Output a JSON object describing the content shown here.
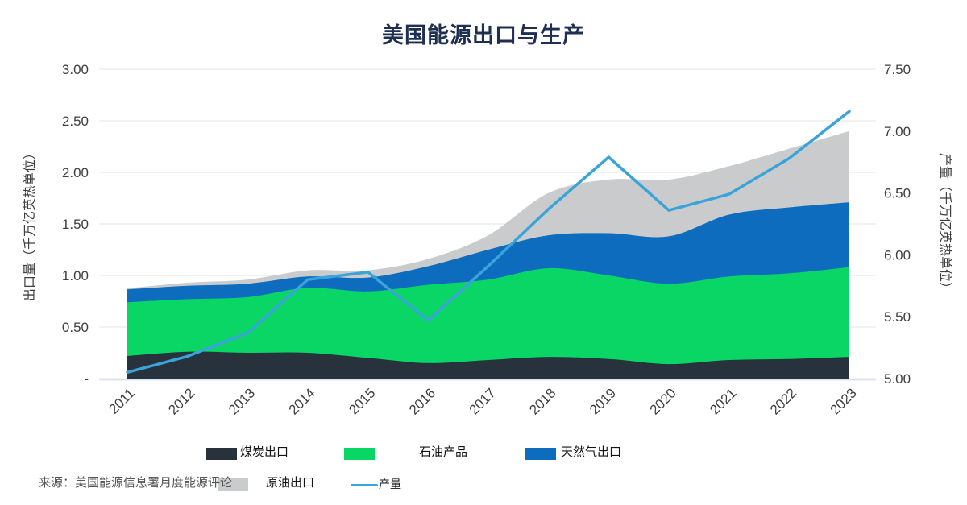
{
  "title": "美国能源出口与生产",
  "source": "来源：美国能源信息署月度能源评论",
  "colors": {
    "coal": "#28323C",
    "petroleum": "#0AD666",
    "gas": "#0D6CBE",
    "crude": "#C9CBCD",
    "line": "#3AA4DA",
    "grid": "#E4E4E6",
    "baseline": "#D7E6F4",
    "axis_text": "#3F3F3F",
    "title_text": "#1E2F51"
  },
  "chart_data": {
    "type": "area",
    "stacked": true,
    "grid": true,
    "legend_position": "bottom",
    "categories": [
      "2011",
      "2012",
      "2013",
      "2014",
      "2015",
      "2016",
      "2017",
      "2018",
      "2019",
      "2020",
      "2021",
      "2022",
      "2023"
    ],
    "series": [
      {
        "name": "煤炭出口",
        "key": "coal",
        "axis": "left",
        "values": [
          0.22,
          0.26,
          0.25,
          0.25,
          0.2,
          0.15,
          0.18,
          0.21,
          0.19,
          0.14,
          0.18,
          0.19,
          0.21
        ]
      },
      {
        "name": "石油产品",
        "key": "petroleum",
        "axis": "left",
        "values": [
          0.52,
          0.51,
          0.54,
          0.63,
          0.645,
          0.76,
          0.78,
          0.86,
          0.81,
          0.78,
          0.81,
          0.83,
          0.87
        ]
      },
      {
        "name": "天然气出口",
        "key": "gas",
        "axis": "left",
        "values": [
          0.125,
          0.13,
          0.13,
          0.11,
          0.135,
          0.18,
          0.29,
          0.32,
          0.41,
          0.46,
          0.6,
          0.64,
          0.63
        ]
      },
      {
        "name": "原油出口",
        "key": "crude",
        "axis": "left",
        "values": [
          0.01,
          0.03,
          0.04,
          0.06,
          0.07,
          0.07,
          0.14,
          0.41,
          0.52,
          0.55,
          0.47,
          0.57,
          0.69
        ]
      },
      {
        "name": "产量",
        "key": "line",
        "type": "line",
        "axis": "right",
        "values": [
          5.05,
          5.18,
          5.37,
          5.8,
          5.86,
          5.47,
          5.91,
          6.37,
          6.79,
          6.36,
          6.49,
          6.78,
          7.16
        ]
      }
    ],
    "left_axis": {
      "title": "出口量（千万亿英热单位）",
      "min": 0,
      "max": 3.0,
      "ticks": [
        "3.00",
        "2.50",
        "2.00",
        "1.50",
        "1.00",
        "0.50",
        "-"
      ]
    },
    "right_axis": {
      "title": "产量（千万亿英热单位）",
      "min": 5.0,
      "max": 7.5,
      "ticks": [
        "7.50",
        "7.00",
        "6.50",
        "6.00",
        "5.50",
        "5.00"
      ]
    }
  },
  "legend": {
    "row1": [
      {
        "key": "coal",
        "label": "煤炭出口"
      },
      {
        "key": "petroleum",
        "label": "石油产品"
      },
      {
        "key": "gas",
        "label": "天然气出口"
      }
    ],
    "row2": [
      {
        "key": "crude",
        "label": "原油出口"
      },
      {
        "key": "line",
        "label": "产量"
      }
    ]
  }
}
